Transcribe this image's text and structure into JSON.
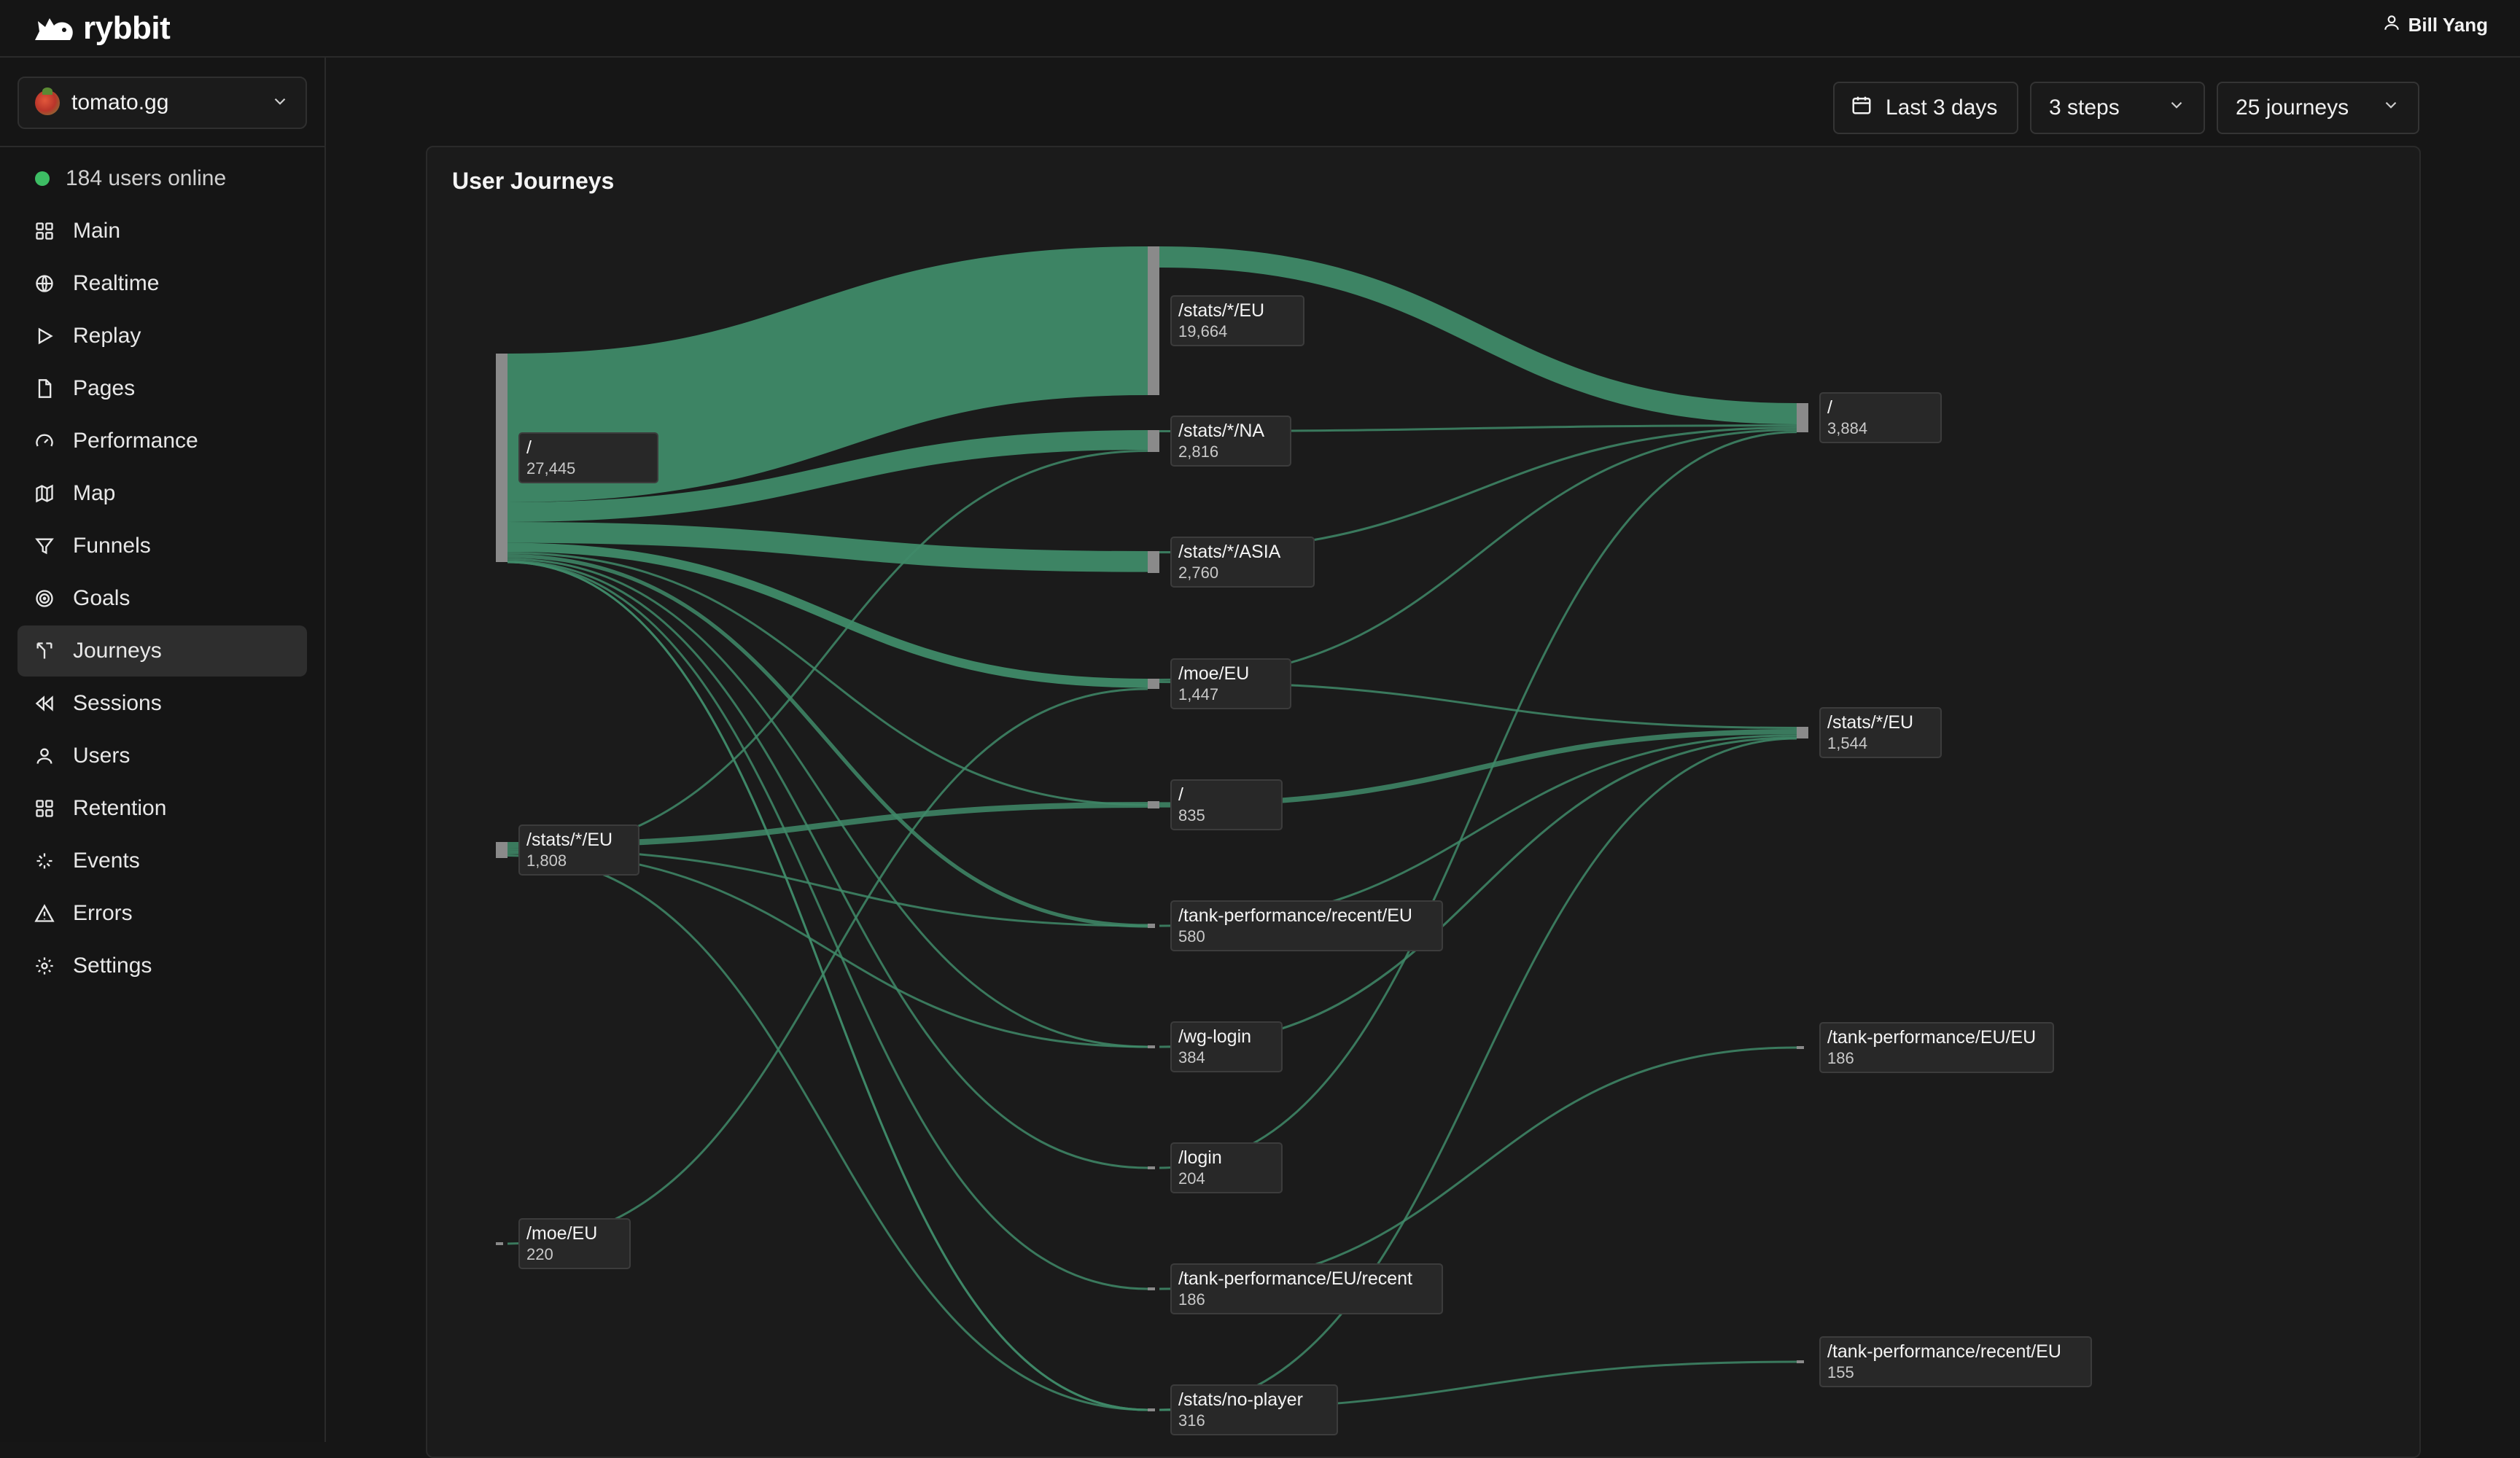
{
  "app": {
    "name": "rybbit",
    "user": "Bill Yang"
  },
  "site": {
    "name": "tomato.gg"
  },
  "online": {
    "text": "184 users online"
  },
  "nav": [
    {
      "label": "Main",
      "icon": "grid-icon"
    },
    {
      "label": "Realtime",
      "icon": "globe-icon"
    },
    {
      "label": "Replay",
      "icon": "play-icon"
    },
    {
      "label": "Pages",
      "icon": "file-icon"
    },
    {
      "label": "Performance",
      "icon": "gauge-icon"
    },
    {
      "label": "Map",
      "icon": "map-icon"
    },
    {
      "label": "Funnels",
      "icon": "funnel-icon"
    },
    {
      "label": "Goals",
      "icon": "target-icon"
    },
    {
      "label": "Journeys",
      "icon": "split-icon",
      "active": true
    },
    {
      "label": "Sessions",
      "icon": "rewind-icon"
    },
    {
      "label": "Users",
      "icon": "user-icon"
    },
    {
      "label": "Retention",
      "icon": "grid-icon"
    },
    {
      "label": "Events",
      "icon": "sparkle-icon"
    },
    {
      "label": "Errors",
      "icon": "alert-icon"
    },
    {
      "label": "Settings",
      "icon": "gear-icon"
    }
  ],
  "controls": {
    "date_range": "Last 3 days",
    "steps": "3 steps",
    "journeys": "25 journeys"
  },
  "card": {
    "title": "User Journeys"
  },
  "colors": {
    "link": "#3f8a68",
    "node_bar": "#8a8a8a",
    "online_dot": "#3dbd64"
  },
  "chart_data": {
    "type": "sankey",
    "steps": 3,
    "nodes": [
      {
        "id": "a1",
        "step": 1,
        "path": "/",
        "count": 27445
      },
      {
        "id": "a2",
        "step": 1,
        "path": "/stats/*/EU",
        "count": 1808
      },
      {
        "id": "a3",
        "step": 1,
        "path": "/moe/EU",
        "count": 220
      },
      {
        "id": "b1",
        "step": 2,
        "path": "/stats/*/EU",
        "count": 19664
      },
      {
        "id": "b2",
        "step": 2,
        "path": "/stats/*/NA",
        "count": 2816
      },
      {
        "id": "b3",
        "step": 2,
        "path": "/stats/*/ASIA",
        "count": 2760
      },
      {
        "id": "b4",
        "step": 2,
        "path": "/moe/EU",
        "count": 1447
      },
      {
        "id": "b5",
        "step": 2,
        "path": "/",
        "count": 835
      },
      {
        "id": "b6",
        "step": 2,
        "path": "/tank-performance/recent/EU",
        "count": 580
      },
      {
        "id": "b7",
        "step": 2,
        "path": "/wg-login",
        "count": 384
      },
      {
        "id": "b8",
        "step": 2,
        "path": "/login",
        "count": 204
      },
      {
        "id": "b9",
        "step": 2,
        "path": "/tank-performance/EU/recent",
        "count": 186
      },
      {
        "id": "b10",
        "step": 2,
        "path": "/stats/no-player",
        "count": 316
      },
      {
        "id": "c1",
        "step": 3,
        "path": "/",
        "count": 3884
      },
      {
        "id": "c2",
        "step": 3,
        "path": "/stats/*/EU",
        "count": 1544
      },
      {
        "id": "c3",
        "step": 3,
        "path": "/tank-performance/EU/EU",
        "count": 186
      },
      {
        "id": "c4",
        "step": 3,
        "path": "/tank-performance/recent/EU",
        "count": 155
      }
    ],
    "links": [
      {
        "source": "a1",
        "target": "b1",
        "value": 19664
      },
      {
        "source": "a1",
        "target": "b2",
        "value": 2600
      },
      {
        "source": "a1",
        "target": "b3",
        "value": 2760
      },
      {
        "source": "a1",
        "target": "b4",
        "value": 1200
      },
      {
        "source": "a1",
        "target": "b5",
        "value": 60
      },
      {
        "source": "a1",
        "target": "b6",
        "value": 500
      },
      {
        "source": "a1",
        "target": "b7",
        "value": 200
      },
      {
        "source": "a1",
        "target": "b8",
        "value": 150
      },
      {
        "source": "a1",
        "target": "b9",
        "value": 150
      },
      {
        "source": "a1",
        "target": "b10",
        "value": 250
      },
      {
        "source": "a1",
        "target": "b10",
        "value": 60
      },
      {
        "source": "a2",
        "target": "b5",
        "value": 775
      },
      {
        "source": "a2",
        "target": "b6",
        "value": 80
      },
      {
        "source": "a2",
        "target": "b7",
        "value": 184
      },
      {
        "source": "a2",
        "target": "b2",
        "value": 180
      },
      {
        "source": "a2",
        "target": "b10",
        "value": 60
      },
      {
        "source": "a3",
        "target": "b4",
        "value": 200
      },
      {
        "source": "b1",
        "target": "c1",
        "value": 2800
      },
      {
        "source": "b2",
        "target": "c1",
        "value": 250
      },
      {
        "source": "b3",
        "target": "c1",
        "value": 300
      },
      {
        "source": "b4",
        "target": "c1",
        "value": 150
      },
      {
        "source": "b4",
        "target": "c2",
        "value": 120
      },
      {
        "source": "b5",
        "target": "c2",
        "value": 700
      },
      {
        "source": "b6",
        "target": "c2",
        "value": 200
      },
      {
        "source": "b7",
        "target": "c2",
        "value": 300
      },
      {
        "source": "b8",
        "target": "c1",
        "value": 150
      },
      {
        "source": "b9",
        "target": "c3",
        "value": 186
      },
      {
        "source": "b10",
        "target": "c2",
        "value": 150
      },
      {
        "source": "b10",
        "target": "c4",
        "value": 155
      }
    ]
  }
}
